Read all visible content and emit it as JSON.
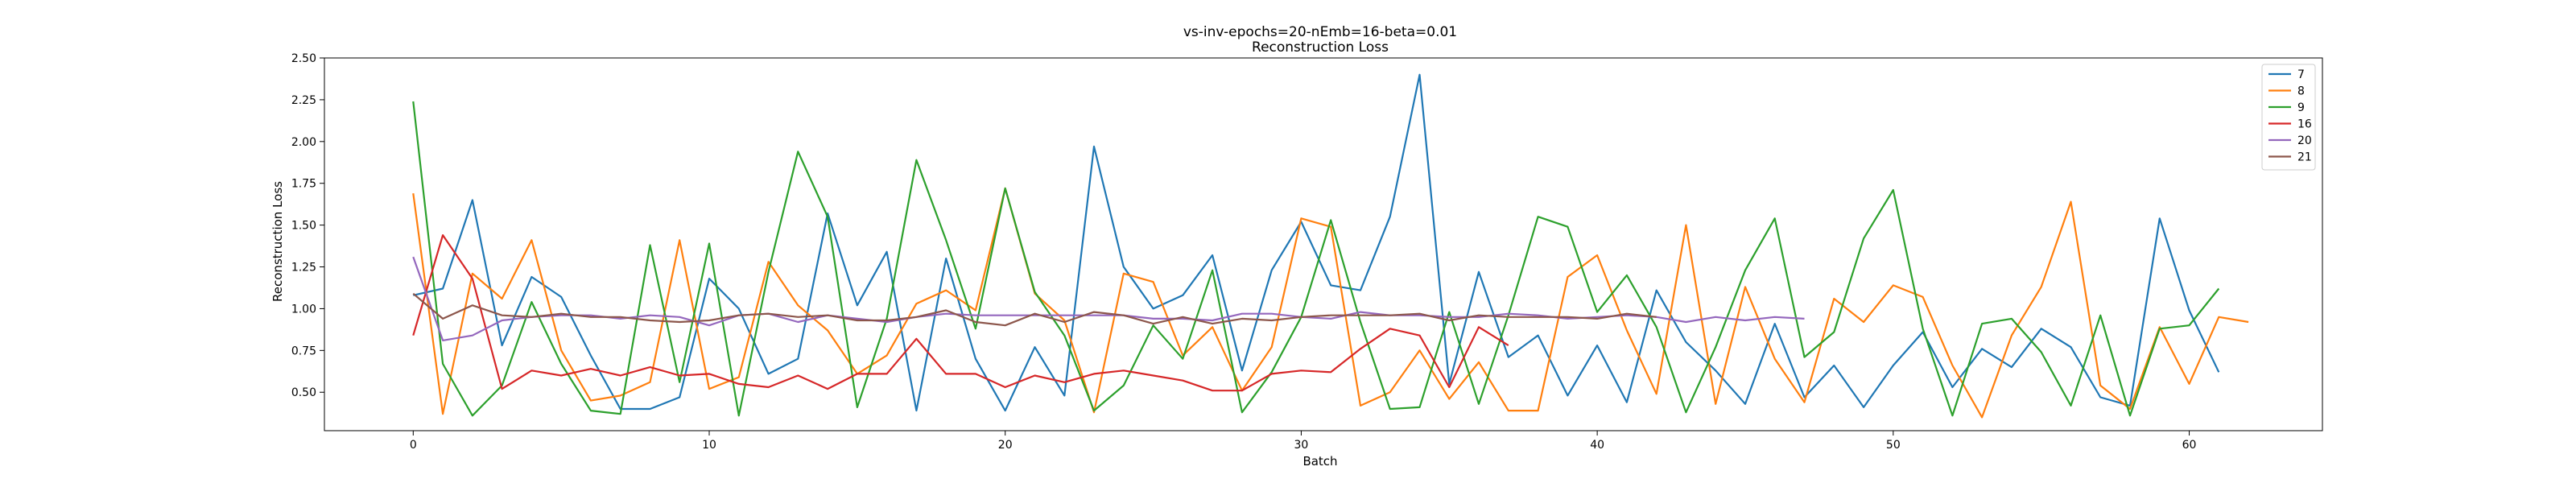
{
  "chart_data": {
    "type": "line",
    "title_line1": "vs-inv-epochs=20-nEmb=16-beta=0.01",
    "title_line2": "Reconstruction Loss",
    "xlabel": "Batch",
    "ylabel": "Reconstruction Loss",
    "xlim": [
      -3,
      64.5
    ],
    "ylim": [
      0.27,
      2.5
    ],
    "xticks": [
      0,
      10,
      20,
      30,
      40,
      50,
      60
    ],
    "yticks": [
      0.5,
      0.75,
      1.0,
      1.25,
      1.5,
      1.75,
      2.0,
      2.25,
      2.5
    ],
    "ytick_labels": [
      "0.50",
      "0.75",
      "1.00",
      "1.25",
      "1.50",
      "1.75",
      "2.00",
      "2.25",
      "2.50"
    ],
    "legend_position": "top-right",
    "series": [
      {
        "name": "7",
        "color": "#1f77b4",
        "values": [
          1.08,
          1.12,
          1.65,
          0.78,
          1.19,
          1.07,
          0.72,
          0.4,
          0.4,
          0.47,
          1.18,
          1.0,
          0.61,
          0.7,
          1.57,
          1.02,
          1.34,
          0.39,
          1.3,
          0.7,
          0.39,
          0.77,
          0.48,
          1.97,
          1.25,
          1.0,
          1.08,
          1.32,
          0.63,
          1.23,
          1.52,
          1.14,
          1.11,
          1.55,
          2.4,
          0.55,
          1.22,
          0.71,
          0.84,
          0.48,
          0.78,
          0.44,
          1.11,
          0.8,
          0.63,
          0.43,
          0.91,
          0.47,
          0.66,
          0.41,
          0.66,
          0.86,
          0.53,
          0.76,
          0.65,
          0.88,
          0.77,
          0.47,
          0.42,
          1.54,
          0.99,
          0.62
        ]
      },
      {
        "name": "8",
        "color": "#ff7f0e",
        "values": [
          1.69,
          0.37,
          1.21,
          1.06,
          1.41,
          0.75,
          0.45,
          0.48,
          0.56,
          1.41,
          0.52,
          0.59,
          1.28,
          1.02,
          0.87,
          0.61,
          0.72,
          1.03,
          1.11,
          0.99,
          1.72,
          1.09,
          0.93,
          0.38,
          1.21,
          1.16,
          0.72,
          0.89,
          0.51,
          0.77,
          1.54,
          1.49,
          0.42,
          0.5,
          0.75,
          0.46,
          0.68,
          0.39,
          0.39,
          1.19,
          1.32,
          0.87,
          0.49,
          1.5,
          0.43,
          1.13,
          0.7,
          0.44,
          1.06,
          0.92,
          1.14,
          1.07,
          0.66,
          0.35,
          0.84,
          1.13,
          1.64,
          0.54,
          0.4,
          0.89,
          0.55,
          0.95,
          0.92
        ]
      },
      {
        "name": "9",
        "color": "#2ca02c",
        "values": [
          2.24,
          0.67,
          0.36,
          0.54,
          1.04,
          0.67,
          0.39,
          0.37,
          1.38,
          0.56,
          1.39,
          0.36,
          1.22,
          1.94,
          1.55,
          0.41,
          0.94,
          1.89,
          1.41,
          0.88,
          1.72,
          1.1,
          0.84,
          0.39,
          0.54,
          0.9,
          0.7,
          1.23,
          0.38,
          0.62,
          0.95,
          1.53,
          0.92,
          0.4,
          0.41,
          0.98,
          0.43,
          0.96,
          1.55,
          1.49,
          0.98,
          1.2,
          0.89,
          0.38,
          0.77,
          1.23,
          1.54,
          0.71,
          0.86,
          1.42,
          1.71,
          0.88,
          0.36,
          0.91,
          0.94,
          0.74,
          0.42,
          0.96,
          0.36,
          0.88,
          0.9,
          1.12
        ]
      },
      {
        "name": "16",
        "color": "#d62728",
        "values": [
          0.84,
          1.44,
          1.18,
          0.52,
          0.63,
          0.6,
          0.64,
          0.6,
          0.65,
          0.6,
          0.61,
          0.55,
          0.53,
          0.6,
          0.52,
          0.61,
          0.61,
          0.82,
          0.61,
          0.61,
          0.53,
          0.6,
          0.56,
          0.61,
          0.63,
          0.6,
          0.57,
          0.51,
          0.51,
          0.61,
          0.63,
          0.62,
          0.76,
          0.88,
          0.84,
          0.53,
          0.89,
          0.78
        ]
      },
      {
        "name": "20",
        "color": "#9467bd",
        "values": [
          1.31,
          0.81,
          0.84,
          0.93,
          0.95,
          0.96,
          0.96,
          0.94,
          0.96,
          0.95,
          0.9,
          0.96,
          0.97,
          0.92,
          0.96,
          0.94,
          0.92,
          0.95,
          0.97,
          0.96,
          0.96,
          0.96,
          0.96,
          0.96,
          0.96,
          0.94,
          0.94,
          0.93,
          0.97,
          0.97,
          0.95,
          0.94,
          0.98,
          0.96,
          0.96,
          0.95,
          0.95,
          0.97,
          0.96,
          0.94,
          0.95,
          0.96,
          0.95,
          0.92,
          0.95,
          0.93,
          0.95,
          0.94
        ]
      },
      {
        "name": "21",
        "color": "#8c564b",
        "values": [
          1.09,
          0.94,
          1.02,
          0.96,
          0.95,
          0.97,
          0.95,
          0.95,
          0.93,
          0.92,
          0.93,
          0.96,
          0.97,
          0.95,
          0.96,
          0.93,
          0.93,
          0.95,
          0.99,
          0.92,
          0.9,
          0.97,
          0.92,
          0.98,
          0.96,
          0.91,
          0.95,
          0.91,
          0.94,
          0.93,
          0.95,
          0.96,
          0.96,
          0.96,
          0.97,
          0.93,
          0.96,
          0.95,
          0.95,
          0.95,
          0.94,
          0.97,
          0.95
        ]
      }
    ]
  }
}
